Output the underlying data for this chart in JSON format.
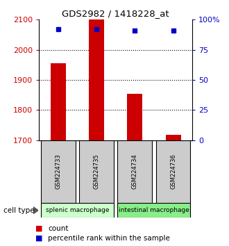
{
  "title": "GDS2982 / 1418228_at",
  "samples": [
    "GSM224733",
    "GSM224735",
    "GSM224734",
    "GSM224736"
  ],
  "bar_values": [
    1955,
    2105,
    1855,
    1718
  ],
  "percentile_values": [
    92,
    92,
    91,
    91
  ],
  "bar_baseline": 1700,
  "ylim_left": [
    1700,
    2100
  ],
  "ylim_right": [
    0,
    100
  ],
  "yticks_left": [
    1700,
    1800,
    1900,
    2000,
    2100
  ],
  "yticks_right": [
    0,
    25,
    50,
    75,
    100
  ],
  "ytick_labels_right": [
    "0",
    "25",
    "50",
    "75",
    "100%"
  ],
  "bar_color": "#cc0000",
  "dot_color": "#0000cc",
  "grid_ticks": [
    1800,
    1900,
    2000
  ],
  "cell_type_colors": {
    "splenic macrophage": "#ccffcc",
    "intestinal macrophage": "#88ee88"
  },
  "sample_box_color": "#cccccc",
  "legend_count_color": "#cc0000",
  "legend_percentile_color": "#0000cc",
  "background_color": "#ffffff",
  "bar_width": 0.4
}
